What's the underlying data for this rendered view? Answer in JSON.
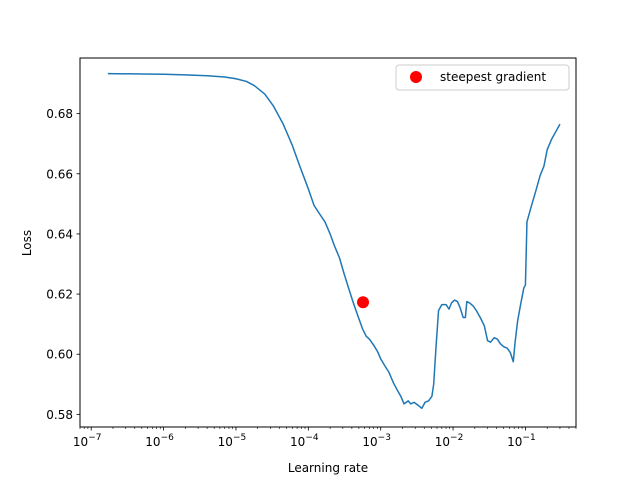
{
  "chart_data": {
    "type": "line",
    "xlabel": "Learning rate",
    "ylabel": "Loss",
    "x_scale": "log",
    "xlim": [
      7e-08,
      0.5
    ],
    "ylim": [
      0.5758,
      0.6985
    ],
    "x_ticks": [
      {
        "value": 1e-07,
        "base": "10",
        "exp": "−7"
      },
      {
        "value": 1e-06,
        "base": "10",
        "exp": "−6"
      },
      {
        "value": 1e-05,
        "base": "10",
        "exp": "−5"
      },
      {
        "value": 0.0001,
        "base": "10",
        "exp": "−4"
      },
      {
        "value": 0.001,
        "base": "10",
        "exp": "−3"
      },
      {
        "value": 0.01,
        "base": "10",
        "exp": "−2"
      },
      {
        "value": 0.1,
        "base": "10",
        "exp": "−1"
      }
    ],
    "y_ticks": [
      {
        "value": 0.58,
        "label": "0.58"
      },
      {
        "value": 0.6,
        "label": "0.60"
      },
      {
        "value": 0.62,
        "label": "0.62"
      },
      {
        "value": 0.64,
        "label": "0.64"
      },
      {
        "value": 0.66,
        "label": "0.66"
      },
      {
        "value": 0.68,
        "label": "0.68"
      }
    ],
    "legend": {
      "placement": "upper-right",
      "entries": [
        "steepest gradient"
      ]
    },
    "grid": false,
    "series": [
      {
        "color": "#1f77b4",
        "points": [
          [
            1.7e-07,
            0.6933
          ],
          [
            5e-07,
            0.6932
          ],
          [
            1e-06,
            0.6931
          ],
          [
            2e-06,
            0.6929
          ],
          [
            4e-06,
            0.6926
          ],
          [
            7e-06,
            0.6922
          ],
          [
            1e-05,
            0.6916
          ],
          [
            1.4e-05,
            0.6907
          ],
          [
            1.8e-05,
            0.6893
          ],
          [
            2.5e-05,
            0.6865
          ],
          [
            3.3e-05,
            0.6825
          ],
          [
            4.5e-05,
            0.6765
          ],
          [
            6e-05,
            0.6695
          ],
          [
            7.5e-05,
            0.663
          ],
          [
            0.0001,
            0.655
          ],
          [
            0.00012,
            0.6495
          ],
          [
            0.00014,
            0.647
          ],
          [
            0.00017,
            0.644
          ],
          [
            0.0002,
            0.64
          ],
          [
            0.00023,
            0.636
          ],
          [
            0.00027,
            0.632
          ],
          [
            0.00031,
            0.627
          ],
          [
            0.00036,
            0.622
          ],
          [
            0.00042,
            0.617
          ],
          [
            0.00048,
            0.613
          ],
          [
            0.00056,
            0.6085
          ],
          [
            0.00063,
            0.606
          ],
          [
            0.0007,
            0.605
          ],
          [
            0.0008,
            0.603
          ],
          [
            0.0009,
            0.601
          ],
          [
            0.001,
            0.5985
          ],
          [
            0.00115,
            0.596
          ],
          [
            0.0013,
            0.594
          ],
          [
            0.0015,
            0.5905
          ],
          [
            0.0017,
            0.588
          ],
          [
            0.0019,
            0.586
          ],
          [
            0.0021,
            0.5835
          ],
          [
            0.0024,
            0.5845
          ],
          [
            0.0026,
            0.5835
          ],
          [
            0.0029,
            0.584
          ],
          [
            0.0033,
            0.583
          ],
          [
            0.0037,
            0.582
          ],
          [
            0.0041,
            0.584
          ],
          [
            0.0046,
            0.5845
          ],
          [
            0.0051,
            0.586
          ],
          [
            0.0054,
            0.59
          ],
          [
            0.0058,
            0.602
          ],
          [
            0.0063,
            0.6145
          ],
          [
            0.007,
            0.6165
          ],
          [
            0.008,
            0.6165
          ],
          [
            0.0088,
            0.615
          ],
          [
            0.0095,
            0.617
          ],
          [
            0.0105,
            0.618
          ],
          [
            0.0115,
            0.6175
          ],
          [
            0.0125,
            0.6155
          ],
          [
            0.0138,
            0.6122
          ],
          [
            0.0148,
            0.6122
          ],
          [
            0.0155,
            0.6175
          ],
          [
            0.017,
            0.617
          ],
          [
            0.019,
            0.616
          ],
          [
            0.021,
            0.6145
          ],
          [
            0.024,
            0.612
          ],
          [
            0.027,
            0.6095
          ],
          [
            0.03,
            0.6045
          ],
          [
            0.033,
            0.604
          ],
          [
            0.037,
            0.6055
          ],
          [
            0.041,
            0.605
          ],
          [
            0.045,
            0.6035
          ],
          [
            0.05,
            0.6025
          ],
          [
            0.056,
            0.602
          ],
          [
            0.062,
            0.6005
          ],
          [
            0.068,
            0.5975
          ],
          [
            0.072,
            0.604
          ],
          [
            0.078,
            0.611
          ],
          [
            0.085,
            0.616
          ],
          [
            0.095,
            0.622
          ],
          [
            0.1,
            0.623
          ],
          [
            0.105,
            0.644
          ],
          [
            0.12,
            0.649
          ],
          [
            0.14,
            0.6545
          ],
          [
            0.16,
            0.6595
          ],
          [
            0.18,
            0.6625
          ],
          [
            0.2,
            0.668
          ],
          [
            0.23,
            0.6715
          ],
          [
            0.27,
            0.6745
          ],
          [
            0.3,
            0.6765
          ]
        ]
      }
    ],
    "marker": {
      "label": "steepest gradient",
      "x": 0.00057,
      "y": 0.6173,
      "color": "#ff0000"
    }
  }
}
